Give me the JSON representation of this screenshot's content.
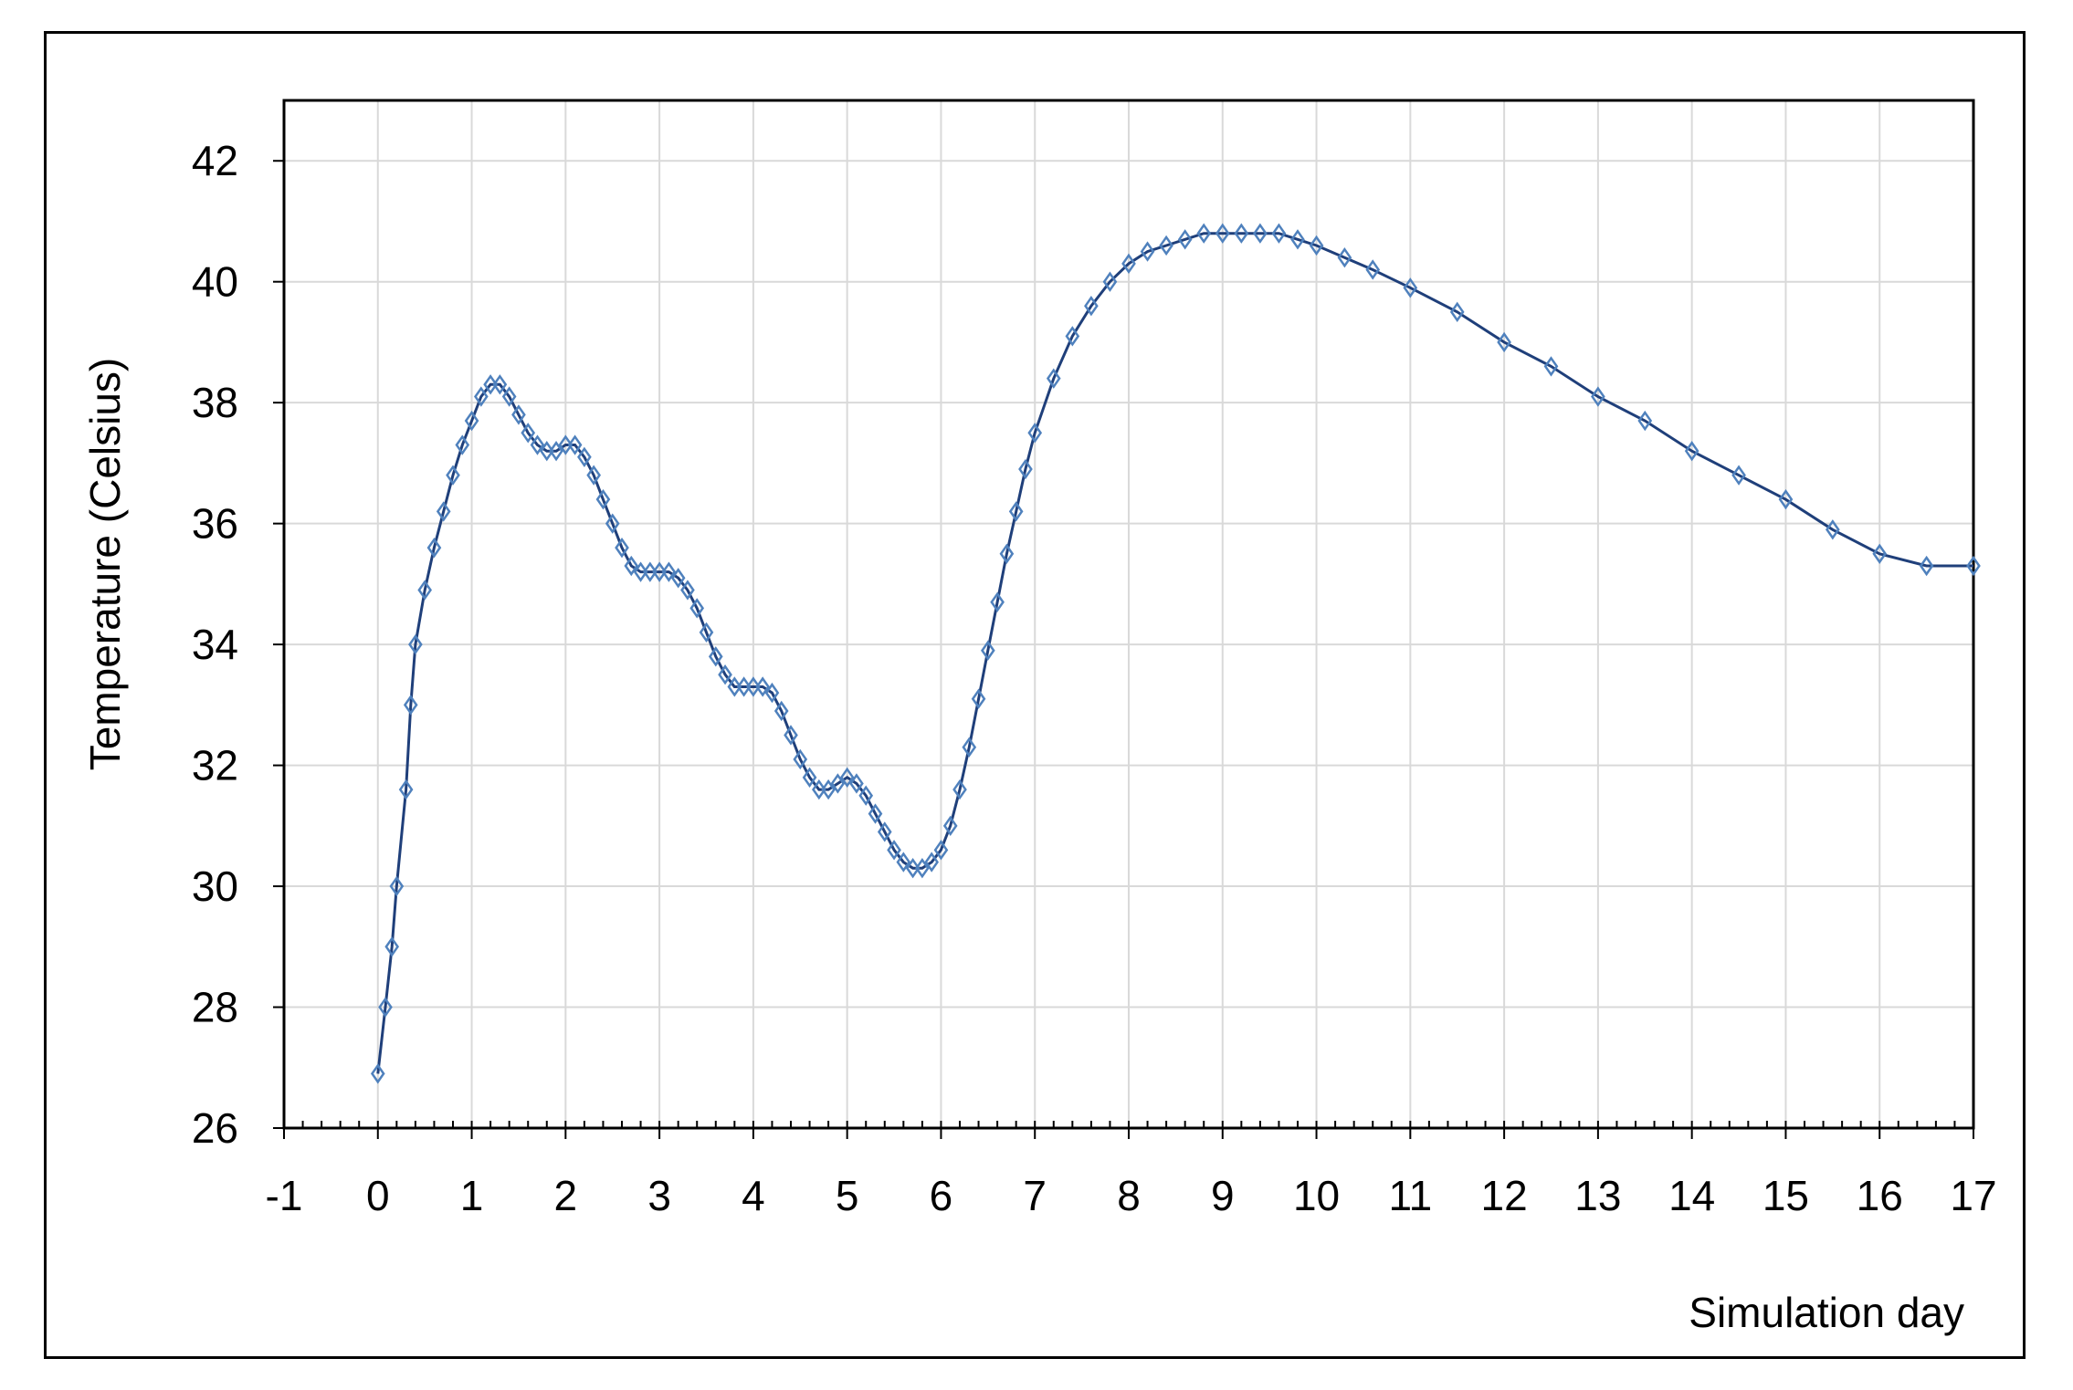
{
  "chart_data": {
    "type": "scatter",
    "title": "",
    "xlabel": "Simulation day",
    "ylabel": "Temperature (Celsius)",
    "xlim": [
      -1,
      17
    ],
    "ylim": [
      26,
      43
    ],
    "x_ticks": [
      -1,
      0,
      1,
      2,
      3,
      4,
      5,
      6,
      7,
      8,
      9,
      10,
      11,
      12,
      13,
      14,
      15,
      16,
      17
    ],
    "y_ticks": [
      26,
      28,
      30,
      32,
      34,
      36,
      38,
      40,
      42
    ],
    "grid": true,
    "legend": "none",
    "series_color": "#4f81bd",
    "series": [
      {
        "marker": "diamond",
        "line": true,
        "x": [
          0.0,
          0.08,
          0.15,
          0.2,
          0.3,
          0.35,
          0.4,
          0.5,
          0.6,
          0.7,
          0.8,
          0.9,
          1.0,
          1.1,
          1.2,
          1.3,
          1.4,
          1.5,
          1.6,
          1.7,
          1.8,
          1.9,
          2.0,
          2.1,
          2.2,
          2.3,
          2.4,
          2.5,
          2.6,
          2.7,
          2.8,
          2.9,
          3.0,
          3.1,
          3.2,
          3.3,
          3.4,
          3.5,
          3.6,
          3.7,
          3.8,
          3.9,
          4.0,
          4.1,
          4.2,
          4.3,
          4.4,
          4.5,
          4.6,
          4.7,
          4.8,
          4.9,
          5.0,
          5.1,
          5.2,
          5.3,
          5.4,
          5.5,
          5.6,
          5.7,
          5.8,
          5.9,
          6.0,
          6.1,
          6.2,
          6.3,
          6.4,
          6.5,
          6.6,
          6.7,
          6.8,
          6.9,
          7.0,
          7.2,
          7.4,
          7.6,
          7.8,
          8.0,
          8.2,
          8.4,
          8.6,
          8.8,
          9.0,
          9.2,
          9.4,
          9.6,
          9.8,
          10.0,
          10.3,
          10.6,
          11.0,
          11.5,
          12.0,
          12.5,
          13.0,
          13.5,
          14.0,
          14.5,
          15.0,
          15.5,
          16.0,
          16.5,
          17.0
        ],
        "y": [
          26.9,
          28.0,
          29.0,
          30.0,
          31.6,
          33.0,
          34.0,
          34.9,
          35.6,
          36.2,
          36.8,
          37.3,
          37.7,
          38.1,
          38.3,
          38.3,
          38.1,
          37.8,
          37.5,
          37.3,
          37.2,
          37.2,
          37.3,
          37.3,
          37.1,
          36.8,
          36.4,
          36.0,
          35.6,
          35.3,
          35.2,
          35.2,
          35.2,
          35.2,
          35.1,
          34.9,
          34.6,
          34.2,
          33.8,
          33.5,
          33.3,
          33.3,
          33.3,
          33.3,
          33.2,
          32.9,
          32.5,
          32.1,
          31.8,
          31.6,
          31.6,
          31.7,
          31.8,
          31.7,
          31.5,
          31.2,
          30.9,
          30.6,
          30.4,
          30.3,
          30.3,
          30.4,
          30.6,
          31.0,
          31.6,
          32.3,
          33.1,
          33.9,
          34.7,
          35.5,
          36.2,
          36.9,
          37.5,
          38.4,
          39.1,
          39.6,
          40.0,
          40.3,
          40.5,
          40.6,
          40.7,
          40.8,
          40.8,
          40.8,
          40.8,
          40.8,
          40.7,
          40.6,
          40.4,
          40.2,
          39.9,
          39.5,
          39.0,
          38.6,
          38.1,
          37.7,
          37.2,
          36.8,
          36.4,
          35.9,
          35.5,
          35.3,
          35.3
        ]
      }
    ]
  }
}
